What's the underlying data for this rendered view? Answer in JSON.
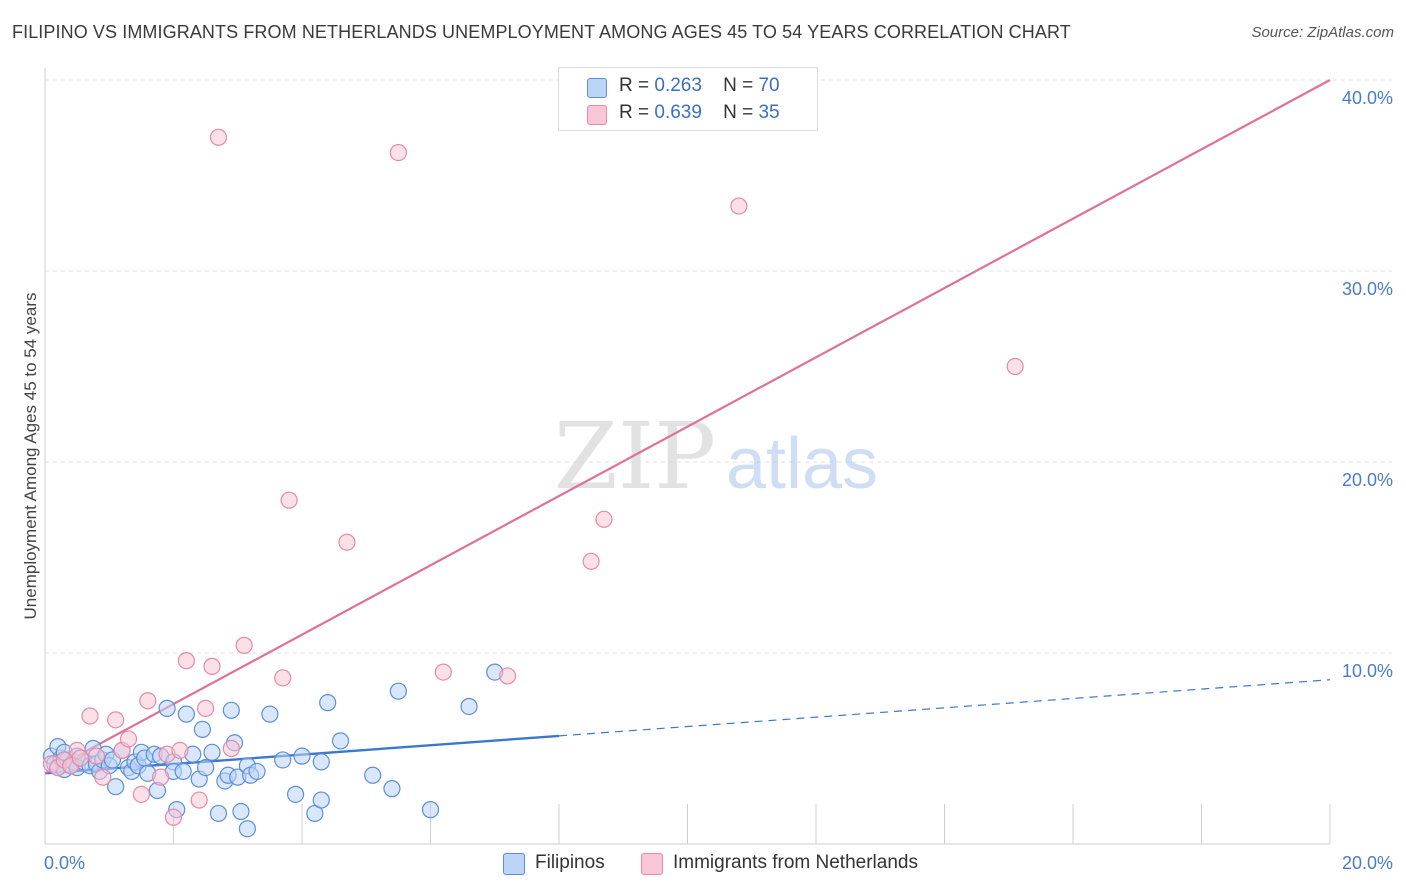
{
  "title": "FILIPINO VS IMMIGRANTS FROM NETHERLANDS UNEMPLOYMENT AMONG AGES 45 TO 54 YEARS CORRELATION CHART",
  "source": "Source: ZipAtlas.com",
  "watermark": {
    "zip": "ZIP",
    "atlas": "atlas"
  },
  "legend": {
    "rows": [
      {
        "r_label": "R =",
        "r_value": "0.263",
        "n_label": "N =",
        "n_value": "70"
      },
      {
        "r_label": "R =",
        "r_value": "0.639",
        "n_label": "N =",
        "n_value": "35"
      }
    ]
  },
  "bottom_legend": [
    {
      "label": "Filipinos"
    },
    {
      "label": "Immigrants from Netherlands"
    }
  ],
  "colors": {
    "blue_fill": "#bcd4f5",
    "blue_stroke": "#5b8fd9",
    "blue_line": "#3a78d0",
    "pink_fill": "#f8c6d6",
    "pink_stroke": "#e58aa8",
    "pink_line": "#e07099",
    "tick_text": "#4a7cc7",
    "grid": "#e2e2e2"
  },
  "chart_data": {
    "type": "scatter",
    "title": "FILIPINO VS IMMIGRANTS FROM NETHERLANDS UNEMPLOYMENT AMONG AGES 45 TO 54 YEARS CORRELATION CHART",
    "xlabel": "",
    "ylabel": "Unemployment Among Ages 45 to 54 years",
    "xlim": [
      0,
      20
    ],
    "ylim": [
      0,
      40
    ],
    "x_tick_labels": [
      "0.0%",
      "20.0%"
    ],
    "y_ticks": [
      10,
      20,
      30,
      40
    ],
    "y_tick_labels": [
      "10.0%",
      "20.0%",
      "30.0%",
      "40.0%"
    ],
    "grid": true,
    "legend_position": "top-center",
    "series": [
      {
        "name": "Filipinos",
        "r": 0.263,
        "n": 70,
        "trend": {
          "x0": 0,
          "y0": 3.7,
          "x_solid_end": 8.0,
          "x1": 20,
          "y1": 8.6
        },
        "points": [
          [
            0.1,
            4.6
          ],
          [
            0.15,
            4.2
          ],
          [
            0.2,
            4.0
          ],
          [
            0.25,
            4.5
          ],
          [
            0.3,
            3.9
          ],
          [
            0.35,
            4.4
          ],
          [
            0.4,
            4.1
          ],
          [
            0.45,
            4.3
          ],
          [
            0.2,
            5.1
          ],
          [
            0.3,
            4.8
          ],
          [
            0.5,
            4.6
          ],
          [
            0.5,
            4.0
          ],
          [
            0.6,
            4.3
          ],
          [
            0.7,
            4.1
          ],
          [
            0.75,
            5.0
          ],
          [
            0.8,
            4.2
          ],
          [
            0.85,
            3.8
          ],
          [
            0.9,
            4.4
          ],
          [
            0.95,
            4.7
          ],
          [
            1.0,
            4.1
          ],
          [
            1.05,
            4.4
          ],
          [
            1.1,
            3.0
          ],
          [
            1.2,
            4.9
          ],
          [
            1.3,
            4.0
          ],
          [
            1.35,
            3.8
          ],
          [
            1.4,
            4.3
          ],
          [
            1.45,
            4.1
          ],
          [
            1.5,
            4.8
          ],
          [
            1.55,
            4.5
          ],
          [
            1.6,
            3.7
          ],
          [
            1.7,
            4.7
          ],
          [
            1.75,
            2.8
          ],
          [
            1.8,
            4.6
          ],
          [
            1.9,
            7.1
          ],
          [
            2.0,
            4.3
          ],
          [
            2.0,
            3.8
          ],
          [
            2.05,
            1.8
          ],
          [
            2.15,
            3.8
          ],
          [
            2.2,
            6.8
          ],
          [
            2.3,
            4.7
          ],
          [
            2.4,
            3.4
          ],
          [
            2.45,
            6.0
          ],
          [
            2.5,
            4.0
          ],
          [
            2.6,
            4.8
          ],
          [
            2.7,
            1.6
          ],
          [
            2.8,
            3.3
          ],
          [
            2.85,
            3.6
          ],
          [
            2.9,
            7.0
          ],
          [
            2.95,
            5.3
          ],
          [
            3.0,
            3.5
          ],
          [
            3.05,
            1.7
          ],
          [
            3.15,
            4.1
          ],
          [
            3.2,
            3.6
          ],
          [
            3.3,
            3.8
          ],
          [
            3.15,
            0.8
          ],
          [
            3.5,
            6.8
          ],
          [
            3.7,
            4.4
          ],
          [
            3.9,
            2.6
          ],
          [
            4.0,
            4.6
          ],
          [
            4.2,
            1.6
          ],
          [
            4.3,
            2.3
          ],
          [
            4.3,
            4.3
          ],
          [
            4.4,
            7.4
          ],
          [
            4.6,
            5.4
          ],
          [
            5.1,
            3.6
          ],
          [
            5.4,
            2.9
          ],
          [
            5.5,
            8.0
          ],
          [
            6.0,
            1.8
          ],
          [
            6.6,
            7.2
          ],
          [
            7.0,
            9.0
          ]
        ]
      },
      {
        "name": "Immigrants from Netherlands",
        "r": 0.639,
        "n": 35,
        "trend": {
          "x0": 0,
          "y0": 3.7,
          "x1": 20,
          "y1": 40.0
        },
        "points": [
          [
            0.1,
            4.2
          ],
          [
            0.2,
            4.0
          ],
          [
            0.3,
            4.4
          ],
          [
            0.4,
            4.1
          ],
          [
            0.5,
            4.9
          ],
          [
            0.55,
            4.5
          ],
          [
            0.7,
            6.7
          ],
          [
            0.8,
            4.6
          ],
          [
            0.9,
            3.5
          ],
          [
            1.1,
            6.5
          ],
          [
            1.2,
            4.9
          ],
          [
            1.3,
            5.5
          ],
          [
            1.5,
            2.6
          ],
          [
            1.6,
            7.5
          ],
          [
            1.8,
            3.5
          ],
          [
            1.9,
            4.7
          ],
          [
            2.0,
            1.4
          ],
          [
            2.1,
            4.9
          ],
          [
            2.2,
            9.6
          ],
          [
            2.4,
            2.3
          ],
          [
            2.5,
            7.1
          ],
          [
            2.6,
            9.3
          ],
          [
            2.7,
            37.0
          ],
          [
            2.9,
            5.0
          ],
          [
            3.1,
            10.4
          ],
          [
            3.7,
            8.7
          ],
          [
            3.8,
            18.0
          ],
          [
            4.7,
            15.8
          ],
          [
            5.5,
            36.2
          ],
          [
            6.2,
            9.0
          ],
          [
            7.2,
            8.8
          ],
          [
            8.5,
            14.8
          ],
          [
            8.7,
            17.0
          ],
          [
            10.8,
            33.4
          ],
          [
            15.1,
            25.0
          ]
        ]
      }
    ]
  }
}
